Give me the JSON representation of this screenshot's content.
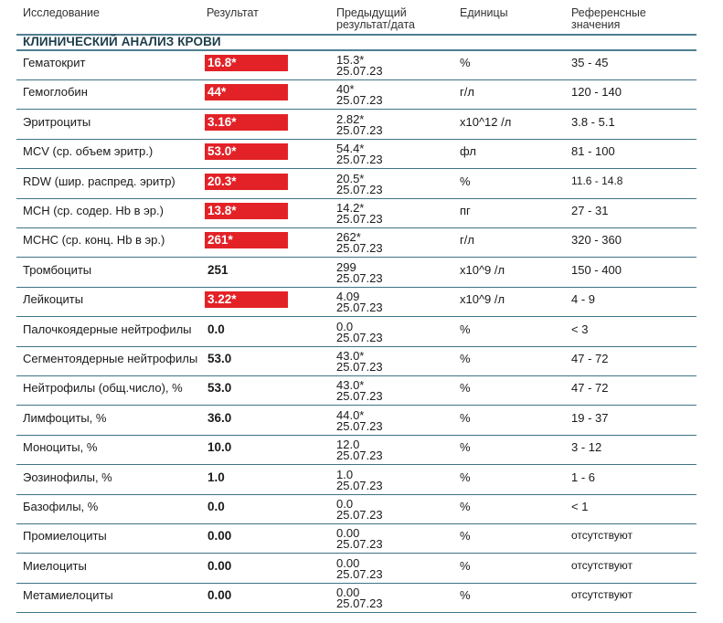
{
  "header": {
    "col_test": "Исследование",
    "col_result": "Результат",
    "col_prev_line1": "Предыдущий",
    "col_prev_line2": "результат/дата",
    "col_units": "Единицы",
    "col_ref_line1": "Референсные",
    "col_ref_line2": "значения"
  },
  "section_title": "КЛИНИЧЕСКИЙ АНАЛИЗ КРОВИ",
  "colors": {
    "flag": "#e32227",
    "rule": "#4f7f91",
    "section": "#1c3d4a"
  },
  "rows": [
    {
      "name": "Гематокрит",
      "result": "16.8*",
      "flag": true,
      "prev": "15.3*",
      "prev_date": "25.07.23",
      "unit": "%",
      "ref": "35 - 45"
    },
    {
      "name": "Гемоглобин",
      "result": "44*",
      "flag": true,
      "prev": "40*",
      "prev_date": "25.07.23",
      "unit": "г/л",
      "ref": "120 - 140"
    },
    {
      "name": "Эритроциты",
      "result": "3.16*",
      "flag": true,
      "prev": "2.82*",
      "prev_date": "25.07.23",
      "unit": "x10^12 /л",
      "ref": "3.8 - 5.1"
    },
    {
      "name": "MCV (ср. объем эритр.)",
      "result": "53.0*",
      "flag": true,
      "prev": "54.4*",
      "prev_date": "25.07.23",
      "unit": "фл",
      "ref": "81 - 100"
    },
    {
      "name": "RDW (шир. распред. эритр)",
      "result": "20.3*",
      "flag": true,
      "prev": "20.5*",
      "prev_date": "25.07.23",
      "unit": "%",
      "ref": "11.6 - 14.8"
    },
    {
      "name": "MCH (ср. содер. Hb в эр.)",
      "result": "13.8*",
      "flag": true,
      "prev": "14.2*",
      "prev_date": "25.07.23",
      "unit": "пг",
      "ref": "27 - 31"
    },
    {
      "name": "MCHC (ср. конц. Hb в эр.)",
      "result": "261*",
      "flag": true,
      "prev": "262*",
      "prev_date": "25.07.23",
      "unit": "г/л",
      "ref": "320 - 360"
    },
    {
      "name": "Тромбоциты",
      "result": "251",
      "flag": false,
      "prev": "299",
      "prev_date": "25.07.23",
      "unit": "x10^9 /л",
      "ref": "150 - 400"
    },
    {
      "name": "Лейкоциты",
      "result": "3.22*",
      "flag": true,
      "prev": "4.09",
      "prev_date": "25.07.23",
      "unit": "x10^9 /л",
      "ref": "4 - 9"
    },
    {
      "name": "Палочкоядерные нейтрофилы",
      "result": "0.0",
      "flag": false,
      "prev": "0.0",
      "prev_date": "25.07.23",
      "unit": "%",
      "ref": "< 3"
    },
    {
      "name": "Сегментоядерные нейтрофилы",
      "result": "53.0",
      "flag": false,
      "prev": "43.0*",
      "prev_date": "25.07.23",
      "unit": "%",
      "ref": "47 - 72"
    },
    {
      "name": "Нейтрофилы (общ.число), %",
      "result": "53.0",
      "flag": false,
      "prev": "43.0*",
      "prev_date": "25.07.23",
      "unit": "%",
      "ref": "47 - 72"
    },
    {
      "name": "Лимфоциты, %",
      "result": "36.0",
      "flag": false,
      "prev": "44.0*",
      "prev_date": "25.07.23",
      "unit": "%",
      "ref": "19 - 37"
    },
    {
      "name": "Моноциты, %",
      "result": "10.0",
      "flag": false,
      "prev": "12.0",
      "prev_date": "25.07.23",
      "unit": "%",
      "ref": "3 - 12"
    },
    {
      "name": "Эозинофилы, %",
      "result": "1.0",
      "flag": false,
      "prev": "1.0",
      "prev_date": "25.07.23",
      "unit": "%",
      "ref": "1 - 6"
    },
    {
      "name": "Базофилы, %",
      "result": "0.0",
      "flag": false,
      "prev": "0.0",
      "prev_date": "25.07.23",
      "unit": "%",
      "ref": "< 1"
    },
    {
      "name": "Промиелоциты",
      "result": "0.00",
      "flag": false,
      "prev": "0.00",
      "prev_date": "25.07.23",
      "unit": "%",
      "ref": "отсутствуют"
    },
    {
      "name": "Миелоциты",
      "result": "0.00",
      "flag": false,
      "prev": "0.00",
      "prev_date": "25.07.23",
      "unit": "%",
      "ref": "отсутствуют"
    },
    {
      "name": "Метамиелоциты",
      "result": "0.00",
      "flag": false,
      "prev": "0.00",
      "prev_date": "25.07.23",
      "unit": "%",
      "ref": "отсутствуют"
    }
  ]
}
